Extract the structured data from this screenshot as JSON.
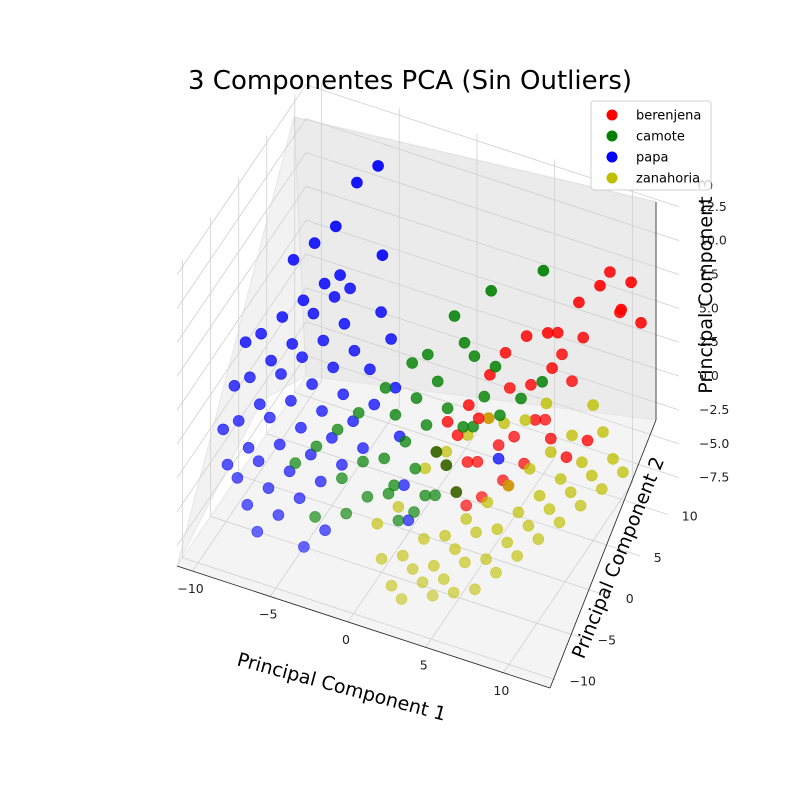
{
  "chart_data": {
    "type": "scatter",
    "projection": "3d",
    "title": "3 Componentes PCA (Sin Outliers)",
    "xlabel": "Principal Component 1",
    "ylabel": "Principal Component 2",
    "zlabel": "Principal Component 3",
    "xlim": [
      -11,
      13
    ],
    "ylim": [
      -11,
      12
    ],
    "zlim": [
      -9,
      13
    ],
    "x_ticks": [
      "−10",
      "−5",
      "0",
      "5",
      "10"
    ],
    "y_ticks": [
      "−10",
      "−5",
      "0",
      "5",
      "10"
    ],
    "z_ticks": [
      "−7.5",
      "−5.0",
      "−2.5",
      "0.0",
      "2.5",
      "5.0",
      "7.5",
      "10.0",
      "12.5"
    ],
    "grid": true,
    "legend_position": "top-right",
    "series": [
      {
        "name": "berenjena",
        "color": "#ff0000",
        "points": [
          [
            10,
            8,
            9
          ],
          [
            11,
            9,
            8
          ],
          [
            9,
            9,
            7
          ],
          [
            12,
            8,
            6
          ],
          [
            10,
            10,
            5
          ],
          [
            11,
            7,
            7
          ],
          [
            8,
            8,
            6
          ],
          [
            9,
            6,
            5
          ],
          [
            7,
            7,
            4
          ],
          [
            6,
            8,
            3
          ],
          [
            5,
            7,
            3
          ],
          [
            8,
            5,
            4
          ],
          [
            7,
            6,
            2
          ],
          [
            6,
            5,
            1
          ],
          [
            9,
            4,
            3
          ],
          [
            4,
            6,
            2
          ],
          [
            5,
            4,
            1
          ],
          [
            3,
            6,
            0
          ],
          [
            7,
            3,
            0
          ],
          [
            6,
            2,
            -1
          ],
          [
            8,
            2,
            1
          ],
          [
            4,
            3,
            -1
          ],
          [
            3,
            4,
            -2
          ],
          [
            5,
            2,
            -2
          ],
          [
            2,
            5,
            -2
          ],
          [
            6,
            0,
            -3
          ],
          [
            4,
            1,
            -3
          ],
          [
            3,
            2,
            -4
          ],
          [
            2,
            3,
            -3
          ],
          [
            5,
            -1,
            -4
          ],
          [
            1,
            4,
            -3
          ],
          [
            4,
            -1,
            -5
          ],
          [
            3,
            0,
            -5
          ],
          [
            2,
            1,
            -4
          ],
          [
            1,
            2,
            -4
          ],
          [
            6,
            1,
            -4
          ],
          [
            7,
            1,
            -2
          ],
          [
            8,
            3,
            -1
          ],
          [
            9,
            3,
            -2
          ],
          [
            10,
            4,
            -1
          ]
        ]
      },
      {
        "name": "camote",
        "color": "#008000",
        "points": [
          [
            2,
            9,
            4
          ],
          [
            5,
            10,
            6
          ],
          [
            0,
            8,
            2
          ],
          [
            1,
            7,
            1
          ],
          [
            -1,
            6,
            0
          ],
          [
            2,
            6,
            1
          ],
          [
            3,
            7,
            0
          ],
          [
            0,
            5,
            -1
          ],
          [
            -2,
            6,
            -1
          ],
          [
            1,
            4,
            -2
          ],
          [
            -1,
            4,
            -2
          ],
          [
            2,
            4,
            -3
          ],
          [
            0,
            3,
            -3
          ],
          [
            -2,
            3,
            -3
          ],
          [
            3,
            3,
            -2
          ],
          [
            -3,
            4,
            -2
          ],
          [
            1,
            2,
            -4
          ],
          [
            -1,
            2,
            -4
          ],
          [
            -4,
            2,
            -3
          ],
          [
            0,
            1,
            -5
          ],
          [
            2,
            1,
            -4
          ],
          [
            -2,
            1,
            -5
          ],
          [
            -3,
            0,
            -5
          ],
          [
            1,
            0,
            -6
          ],
          [
            -1,
            0,
            -6
          ],
          [
            3,
            0,
            -5
          ],
          [
            -5,
            1,
            -4
          ],
          [
            -4,
            -1,
            -6
          ],
          [
            0,
            -2,
            -7
          ],
          [
            -2,
            -2,
            -6
          ],
          [
            1,
            -2,
            -6
          ],
          [
            -6,
            0,
            -5
          ],
          [
            -7,
            -1,
            -6
          ],
          [
            -3,
            -3,
            -7
          ],
          [
            4,
            5,
            -2
          ],
          [
            5,
            6,
            -1
          ],
          [
            3,
            5,
            -1
          ],
          [
            6,
            7,
            0
          ],
          [
            -1,
            -1,
            -6
          ],
          [
            2,
            -1,
            -5
          ],
          [
            -5,
            -3,
            -8
          ]
        ]
      },
      {
        "name": "papa",
        "color": "#0000ff",
        "points": [
          [
            -6,
            11,
            9
          ],
          [
            -7,
            10,
            8
          ],
          [
            -8,
            9,
            5
          ],
          [
            -5,
            9,
            4
          ],
          [
            -9,
            8,
            4
          ],
          [
            -10,
            7,
            3
          ],
          [
            -8,
            7,
            2
          ],
          [
            -9,
            6,
            1
          ],
          [
            -7,
            6,
            2
          ],
          [
            -10,
            5,
            0
          ],
          [
            -8,
            5,
            1
          ],
          [
            -6,
            5,
            1
          ],
          [
            -11,
            4,
            -1
          ],
          [
            -9,
            4,
            -1
          ],
          [
            -7,
            4,
            0
          ],
          [
            -5,
            4,
            0
          ],
          [
            -10,
            3,
            -2
          ],
          [
            -8,
            3,
            -1
          ],
          [
            -6,
            3,
            -1
          ],
          [
            -4,
            4,
            -1
          ],
          [
            -11,
            2,
            -3
          ],
          [
            -9,
            2,
            -2
          ],
          [
            -7,
            2,
            -2
          ],
          [
            -5,
            2,
            -2
          ],
          [
            -3,
            2,
            -2
          ],
          [
            -10,
            1,
            -4
          ],
          [
            -8,
            1,
            -3
          ],
          [
            -6,
            1,
            -3
          ],
          [
            -4,
            1,
            -3
          ],
          [
            -11,
            0,
            -5
          ],
          [
            -9,
            0,
            -4
          ],
          [
            -7,
            0,
            -4
          ],
          [
            -5,
            0,
            -4
          ],
          [
            -3,
            0,
            -4
          ],
          [
            -10,
            -1,
            -6
          ],
          [
            -8,
            -1,
            -5
          ],
          [
            -6,
            -1,
            -5
          ],
          [
            -4,
            -1,
            -5
          ],
          [
            -9,
            -2,
            -6
          ],
          [
            -7,
            -2,
            -6
          ],
          [
            -5,
            -2,
            -6
          ],
          [
            -10,
            -3,
            -7
          ],
          [
            -8,
            -3,
            -7
          ],
          [
            -6,
            -3,
            -7
          ],
          [
            -9,
            -4,
            -8
          ],
          [
            -7,
            -4,
            -8
          ],
          [
            -11,
            -2,
            -7
          ],
          [
            -12,
            0,
            -6
          ],
          [
            -12,
            2,
            -4
          ],
          [
            -12,
            4,
            -2
          ],
          [
            -6,
            6,
            3
          ],
          [
            -4,
            6,
            2
          ],
          [
            -3,
            5,
            1
          ],
          [
            -2,
            3,
            -1
          ],
          [
            -1,
            1,
            -3
          ],
          [
            0,
            -1,
            -5
          ],
          [
            5,
            2,
            -3
          ],
          [
            1,
            -3,
            -6
          ],
          [
            -4,
            -4,
            -8
          ],
          [
            -5,
            -5,
            -9
          ],
          [
            -8,
            -5,
            -9
          ],
          [
            -7,
            7,
            3
          ]
        ]
      },
      {
        "name": "zanahoria",
        "color": "#bfbf00",
        "points": [
          [
            10,
            5,
            1
          ],
          [
            11,
            4,
            0
          ],
          [
            12,
            3,
            -1
          ],
          [
            9,
            4,
            -1
          ],
          [
            10,
            3,
            -2
          ],
          [
            11,
            2,
            -2
          ],
          [
            8,
            3,
            -2
          ],
          [
            9,
            2,
            -3
          ],
          [
            10,
            1,
            -3
          ],
          [
            7,
            2,
            -3
          ],
          [
            8,
            1,
            -4
          ],
          [
            9,
            0,
            -4
          ],
          [
            6,
            1,
            -4
          ],
          [
            7,
            0,
            -5
          ],
          [
            8,
            -1,
            -5
          ],
          [
            5,
            0,
            -5
          ],
          [
            6,
            -1,
            -6
          ],
          [
            7,
            -2,
            -6
          ],
          [
            4,
            -1,
            -6
          ],
          [
            5,
            -2,
            -6
          ],
          [
            6,
            -3,
            -7
          ],
          [
            3,
            -2,
            -7
          ],
          [
            4,
            -3,
            -7
          ],
          [
            5,
            -4,
            -7
          ],
          [
            2,
            -3,
            -7
          ],
          [
            3,
            -4,
            -8
          ],
          [
            4,
            -5,
            -8
          ],
          [
            1,
            -4,
            -8
          ],
          [
            2,
            -5,
            -8
          ],
          [
            3,
            -6,
            -8
          ],
          [
            0,
            -5,
            -8
          ],
          [
            1,
            -6,
            -9
          ],
          [
            2,
            -7,
            -9
          ],
          [
            4,
            -7,
            -8
          ],
          [
            5,
            -6,
            -8
          ],
          [
            6,
            -5,
            -8
          ],
          [
            7,
            -4,
            -7
          ],
          [
            8,
            -3,
            -6
          ],
          [
            9,
            -2,
            -5
          ],
          [
            10,
            -1,
            -4
          ],
          [
            11,
            0,
            -3
          ],
          [
            12,
            1,
            -2
          ],
          [
            13,
            2,
            -1
          ],
          [
            3,
            2,
            -2
          ],
          [
            4,
            3,
            -1
          ],
          [
            2,
            1,
            -3
          ],
          [
            1,
            0,
            -4
          ],
          [
            0,
            -2,
            -6
          ],
          [
            -1,
            -3,
            -7
          ],
          [
            6,
            4,
            -1
          ],
          [
            7,
            5,
            0
          ],
          [
            5,
            3,
            -1
          ]
        ]
      }
    ]
  }
}
